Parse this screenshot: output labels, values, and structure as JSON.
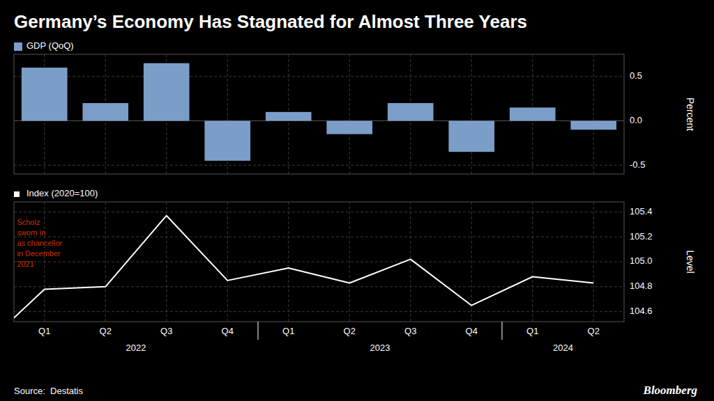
{
  "chart_data": [
    {
      "type": "bar",
      "title": "Germany’s Economy Has Stagnated for Almost Three Years",
      "source": "Source:  Destatis",
      "credit": "Bloomberg",
      "categories": [
        "Q1",
        "Q2",
        "Q3",
        "Q4",
        "Q1",
        "Q2",
        "Q3",
        "Q4",
        "Q1",
        "Q2"
      ],
      "series": [
        {
          "name": "GDP (QoQ)",
          "color": "#7b9ec8",
          "values": [
            0.6,
            0.2,
            0.65,
            -0.45,
            0.1,
            -0.15,
            0.2,
            -0.35,
            0.15,
            -0.1
          ]
        }
      ],
      "y_label": "Percent",
      "ylim": [
        -0.6,
        0.75
      ],
      "yticks": [
        -0.5,
        {
          "value": 0,
          "label": "0.0"
        },
        0.5
      ],
      "grid": true,
      "legend": "upper left",
      "tick_labels": "y"
    },
    {
      "type": "line",
      "x": [
        -0.5,
        0,
        1,
        2,
        3,
        4,
        5,
        6,
        7,
        8,
        9
      ],
      "series": [
        {
          "name": "Index (2020=100)",
          "color": "#ffffff",
          "values": [
            104.55,
            104.78,
            104.8,
            105.37,
            104.85,
            104.95,
            104.83,
            105.02,
            104.65,
            104.88,
            104.83
          ]
        }
      ],
      "y_label": "Level",
      "xlim": [
        -0.5,
        9.5
      ],
      "xticks": [
        {
          "value": 0,
          "label": "Q1"
        },
        {
          "value": 1,
          "label": "Q2"
        },
        {
          "value": 2,
          "label": "Q3"
        },
        {
          "value": 3,
          "label": "Q4"
        },
        {
          "value": 4,
          "label": "Q1"
        },
        {
          "value": 5,
          "label": "Q2"
        },
        {
          "value": 6,
          "label": "Q3"
        },
        {
          "value": 7,
          "label": "Q4"
        },
        {
          "value": 8,
          "label": "Q1"
        },
        {
          "value": 9,
          "label": "Q2"
        }
      ],
      "x_groups": [
        {
          "label": "2022",
          "start": -0.5,
          "end": 3.5
        },
        {
          "label": "2023",
          "start": 3.5,
          "end": 7.5
        },
        {
          "label": "2024",
          "start": 7.5,
          "end": 9.5
        }
      ],
      "ylim": [
        104.52,
        105.48
      ],
      "yticks": [
        104.6,
        104.8,
        {
          "value": 105,
          "label": "105.0"
        },
        105.2,
        105.4
      ],
      "annotation": {
        "text": "Scholz\nsworn in\nas chancellor\nin December\n2021",
        "x": -0.45,
        "y": 105.35,
        "color": "#cc3300"
      },
      "grid": true,
      "legend": "upper left"
    }
  ]
}
